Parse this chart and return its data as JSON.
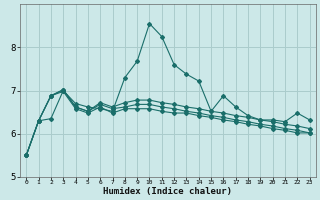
{
  "xlabel": "Humidex (Indice chaleur)",
  "ylabel": "",
  "background_color": "#cce8e8",
  "grid_color": "#aacccc",
  "line_color": "#1a6e6a",
  "xlim": [
    -0.5,
    23.5
  ],
  "ylim": [
    5.0,
    9.0
  ],
  "yticks": [
    5,
    6,
    7,
    8
  ],
  "xticks": [
    0,
    1,
    2,
    3,
    4,
    5,
    6,
    7,
    8,
    9,
    10,
    11,
    12,
    13,
    14,
    15,
    16,
    17,
    18,
    19,
    20,
    21,
    22,
    23
  ],
  "series1": [
    5.5,
    6.3,
    6.35,
    7.0,
    6.7,
    6.62,
    6.58,
    6.52,
    7.3,
    7.68,
    8.55,
    8.25,
    7.6,
    7.38,
    7.22,
    6.52,
    6.88,
    6.62,
    6.42,
    6.32,
    6.32,
    6.28,
    6.48,
    6.32
  ],
  "series2": [
    5.5,
    6.3,
    6.88,
    6.98,
    6.58,
    6.48,
    6.62,
    6.48,
    6.58,
    6.58,
    6.58,
    6.52,
    6.48,
    6.48,
    6.42,
    6.38,
    6.32,
    6.28,
    6.22,
    6.18,
    6.12,
    6.08,
    6.02,
    6.02
  ],
  "series3": [
    5.5,
    6.3,
    6.88,
    7.02,
    6.62,
    6.52,
    6.68,
    6.58,
    6.62,
    6.68,
    6.68,
    6.62,
    6.58,
    6.52,
    6.48,
    6.42,
    6.38,
    6.32,
    6.28,
    6.22,
    6.18,
    6.12,
    6.08,
    6.02
  ],
  "series4": [
    5.5,
    6.3,
    6.88,
    7.02,
    6.62,
    6.52,
    6.72,
    6.62,
    6.72,
    6.78,
    6.78,
    6.72,
    6.68,
    6.62,
    6.58,
    6.52,
    6.48,
    6.42,
    6.38,
    6.32,
    6.28,
    6.22,
    6.18,
    6.12
  ]
}
